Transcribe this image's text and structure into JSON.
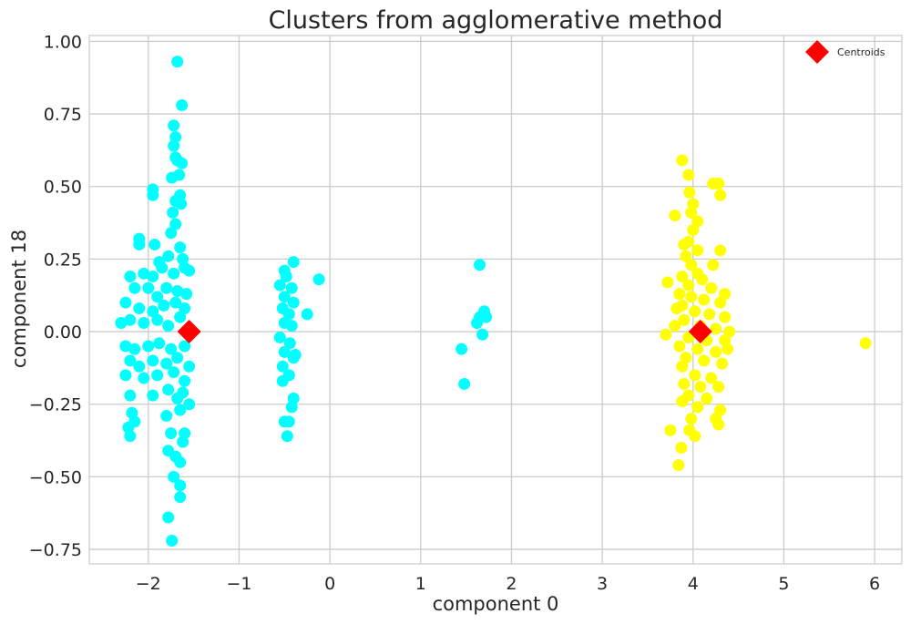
{
  "chart_data": {
    "type": "scatter",
    "title": "Clusters from agglomerative method",
    "xlabel": "component 0",
    "ylabel": "component 18",
    "xlim": [
      -2.65,
      6.3
    ],
    "ylim": [
      -0.8,
      1.02
    ],
    "xticks": [
      -2,
      -1,
      0,
      1,
      2,
      3,
      4,
      5,
      6
    ],
    "yticks": [
      -0.75,
      -0.5,
      -0.25,
      0.0,
      0.25,
      0.5,
      0.75,
      1.0
    ],
    "xtick_labels": [
      "−2",
      "−1",
      "0",
      "1",
      "2",
      "3",
      "4",
      "5",
      "6"
    ],
    "ytick_labels": [
      "−0.75",
      "−0.50",
      "−0.25",
      "0.00",
      "0.25",
      "0.50",
      "0.75",
      "1.00"
    ],
    "grid": true,
    "legend_position": "top-right",
    "legend": [
      {
        "label": "Centroids",
        "marker": "diamond",
        "color": "#ff0000"
      }
    ],
    "series": [
      {
        "color": "#00ffff",
        "marker": "circle",
        "points": [
          [
            -1.68,
            0.93
          ],
          [
            -1.63,
            0.78
          ],
          [
            -1.72,
            0.71
          ],
          [
            -1.7,
            0.67
          ],
          [
            -1.72,
            0.64
          ],
          [
            -1.7,
            0.6
          ],
          [
            -1.68,
            0.59
          ],
          [
            -1.63,
            0.58
          ],
          [
            -1.66,
            0.54
          ],
          [
            -1.74,
            0.53
          ],
          [
            -1.95,
            0.49
          ],
          [
            -1.95,
            0.47
          ],
          [
            -1.65,
            0.47
          ],
          [
            -1.7,
            0.45
          ],
          [
            -1.64,
            0.44
          ],
          [
            -1.73,
            0.41
          ],
          [
            -1.7,
            0.37
          ],
          [
            -1.75,
            0.34
          ],
          [
            -2.1,
            0.32
          ],
          [
            -2.1,
            0.3
          ],
          [
            -1.93,
            0.3
          ],
          [
            -1.65,
            0.29
          ],
          [
            -1.78,
            0.26
          ],
          [
            -1.62,
            0.25
          ],
          [
            -1.88,
            0.24
          ],
          [
            -1.55,
            0.21
          ],
          [
            -2.2,
            0.19
          ],
          [
            -2.05,
            0.2
          ],
          [
            -1.95,
            0.19
          ],
          [
            -1.85,
            0.22
          ],
          [
            -1.72,
            0.2
          ],
          [
            -1.6,
            0.22
          ],
          [
            -2.15,
            0.15
          ],
          [
            -2.0,
            0.15
          ],
          [
            -1.9,
            0.12
          ],
          [
            -1.8,
            0.15
          ],
          [
            -1.68,
            0.14
          ],
          [
            -1.58,
            0.13
          ],
          [
            -2.25,
            0.1
          ],
          [
            -2.1,
            0.08
          ],
          [
            -1.95,
            0.07
          ],
          [
            -1.83,
            0.09
          ],
          [
            -1.7,
            0.1
          ],
          [
            -1.6,
            0.08
          ],
          [
            -2.3,
            0.03
          ],
          [
            -2.2,
            0.04
          ],
          [
            -2.05,
            0.03
          ],
          [
            -1.9,
            0.04
          ],
          [
            -1.78,
            0.02
          ],
          [
            -1.65,
            0.05
          ],
          [
            -2.25,
            -0.05
          ],
          [
            -2.15,
            -0.06
          ],
          [
            -2.0,
            -0.05
          ],
          [
            -1.88,
            -0.04
          ],
          [
            -1.75,
            -0.06
          ],
          [
            -1.6,
            -0.05
          ],
          [
            -2.2,
            -0.1
          ],
          [
            -2.1,
            -0.12
          ],
          [
            -1.95,
            -0.1
          ],
          [
            -1.8,
            -0.11
          ],
          [
            -1.68,
            -0.09
          ],
          [
            -1.55,
            -0.12
          ],
          [
            -2.25,
            -0.15
          ],
          [
            -2.05,
            -0.16
          ],
          [
            -1.9,
            -0.15
          ],
          [
            -1.72,
            -0.14
          ],
          [
            -1.6,
            -0.17
          ],
          [
            -2.2,
            -0.22
          ],
          [
            -1.95,
            -0.22
          ],
          [
            -1.78,
            -0.2
          ],
          [
            -1.62,
            -0.21
          ],
          [
            -1.55,
            -0.25
          ],
          [
            -2.18,
            -0.28
          ],
          [
            -2.15,
            -0.31
          ],
          [
            -1.8,
            -0.29
          ],
          [
            -1.65,
            -0.27
          ],
          [
            -2.2,
            -0.36
          ],
          [
            -1.75,
            -0.35
          ],
          [
            -1.62,
            -0.38
          ],
          [
            -1.78,
            -0.41
          ],
          [
            -1.7,
            -0.43
          ],
          [
            -1.65,
            -0.45
          ],
          [
            -1.72,
            -0.5
          ],
          [
            -1.65,
            -0.53
          ],
          [
            -1.65,
            -0.57
          ],
          [
            -1.78,
            -0.64
          ],
          [
            -1.74,
            -0.72
          ],
          [
            -1.6,
            -0.35
          ],
          [
            -2.22,
            -0.33
          ],
          [
            -1.68,
            -0.23
          ],
          [
            -0.5,
            0.21
          ],
          [
            -0.4,
            0.24
          ],
          [
            -0.48,
            0.19
          ],
          [
            -0.12,
            0.18
          ],
          [
            -0.55,
            0.16
          ],
          [
            -0.42,
            0.15
          ],
          [
            -0.5,
            0.12
          ],
          [
            -0.4,
            0.1
          ],
          [
            -0.52,
            0.08
          ],
          [
            -0.45,
            0.06
          ],
          [
            -0.25,
            0.06
          ],
          [
            -0.5,
            0.03
          ],
          [
            -0.42,
            0.02
          ],
          [
            -0.55,
            -0.02
          ],
          [
            -0.44,
            -0.04
          ],
          [
            -0.5,
            -0.07
          ],
          [
            -0.4,
            -0.09
          ],
          [
            -0.52,
            -0.12
          ],
          [
            -0.45,
            -0.15
          ],
          [
            -0.52,
            -0.17
          ],
          [
            -0.4,
            -0.23
          ],
          [
            -0.42,
            -0.26
          ],
          [
            -0.5,
            -0.31
          ],
          [
            -0.45,
            -0.31
          ],
          [
            -0.47,
            -0.36
          ],
          [
            -0.38,
            -0.08
          ],
          [
            1.65,
            0.23
          ],
          [
            1.7,
            0.07
          ],
          [
            1.65,
            0.05
          ],
          [
            1.62,
            0.03
          ],
          [
            1.68,
            -0.01
          ],
          [
            1.45,
            -0.06
          ],
          [
            1.48,
            -0.18
          ],
          [
            1.72,
            0.05
          ]
        ]
      },
      {
        "color": "#ffff00",
        "marker": "circle",
        "points": [
          [
            3.88,
            0.59
          ],
          [
            3.95,
            0.54
          ],
          [
            4.22,
            0.51
          ],
          [
            4.28,
            0.51
          ],
          [
            3.96,
            0.48
          ],
          [
            4.3,
            0.47
          ],
          [
            4.0,
            0.44
          ],
          [
            3.98,
            0.41
          ],
          [
            3.8,
            0.4
          ],
          [
            4.05,
            0.38
          ],
          [
            4.0,
            0.35
          ],
          [
            3.95,
            0.31
          ],
          [
            3.9,
            0.3
          ],
          [
            4.3,
            0.28
          ],
          [
            4.05,
            0.28
          ],
          [
            3.92,
            0.26
          ],
          [
            4.22,
            0.23
          ],
          [
            3.98,
            0.23
          ],
          [
            4.05,
            0.2
          ],
          [
            3.88,
            0.19
          ],
          [
            3.95,
            0.16
          ],
          [
            4.1,
            0.18
          ],
          [
            3.72,
            0.17
          ],
          [
            4.2,
            0.15
          ],
          [
            4.35,
            0.13
          ],
          [
            3.85,
            0.13
          ],
          [
            3.98,
            0.12
          ],
          [
            4.12,
            0.11
          ],
          [
            3.88,
            0.09
          ],
          [
            4.3,
            0.1
          ],
          [
            4.02,
            0.07
          ],
          [
            4.18,
            0.06
          ],
          [
            4.35,
            0.05
          ],
          [
            3.9,
            0.04
          ],
          [
            3.8,
            0.02
          ],
          [
            4.08,
            0.02
          ],
          [
            4.25,
            0.01
          ],
          [
            3.7,
            -0.01
          ],
          [
            3.95,
            -0.02
          ],
          [
            4.15,
            -0.03
          ],
          [
            4.35,
            -0.03
          ],
          [
            3.85,
            -0.05
          ],
          [
            4.05,
            -0.06
          ],
          [
            4.25,
            -0.07
          ],
          [
            3.92,
            -0.09
          ],
          [
            4.12,
            -0.1
          ],
          [
            4.32,
            -0.11
          ],
          [
            3.88,
            -0.12
          ],
          [
            4.02,
            -0.15
          ],
          [
            4.2,
            -0.16
          ],
          [
            3.9,
            -0.18
          ],
          [
            4.08,
            -0.19
          ],
          [
            4.28,
            -0.19
          ],
          [
            3.95,
            -0.22
          ],
          [
            4.15,
            -0.23
          ],
          [
            3.88,
            -0.24
          ],
          [
            4.05,
            -0.26
          ],
          [
            4.3,
            -0.27
          ],
          [
            3.98,
            -0.3
          ],
          [
            4.25,
            -0.3
          ],
          [
            3.75,
            -0.34
          ],
          [
            3.96,
            -0.34
          ],
          [
            4.02,
            -0.36
          ],
          [
            4.28,
            -0.32
          ],
          [
            3.87,
            -0.4
          ],
          [
            3.84,
            -0.46
          ],
          [
            5.9,
            -0.04
          ],
          [
            4.4,
            0.0
          ],
          [
            4.38,
            -0.06
          ],
          [
            3.82,
            0.08
          ]
        ]
      }
    ],
    "centroids": [
      [
        -1.55,
        0.0
      ],
      [
        4.08,
        0.0
      ]
    ]
  }
}
